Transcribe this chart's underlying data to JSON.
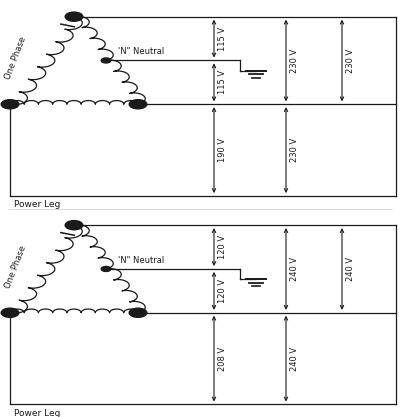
{
  "background_color": "#ffffff",
  "line_color": "#1a1a1a",
  "diagrams": [
    {
      "v_top": "115 V",
      "v_mid": "115 V",
      "v_full1": "230 V",
      "v_full2": "230 V",
      "v_bot1": "190 V",
      "v_bot2": "230 V",
      "neutral_label": "'N\" Neutral",
      "one_phase_label": "One Phase",
      "power_leg_label": "Power Leg"
    },
    {
      "v_top": "120 V",
      "v_mid": "120 V",
      "v_full1": "240 V",
      "v_full2": "240 V",
      "v_bot1": "208 V",
      "v_bot2": "240 V",
      "neutral_label": "'N\" Neutral",
      "one_phase_label": "One Phase",
      "power_leg_label": "Power Leg"
    }
  ]
}
